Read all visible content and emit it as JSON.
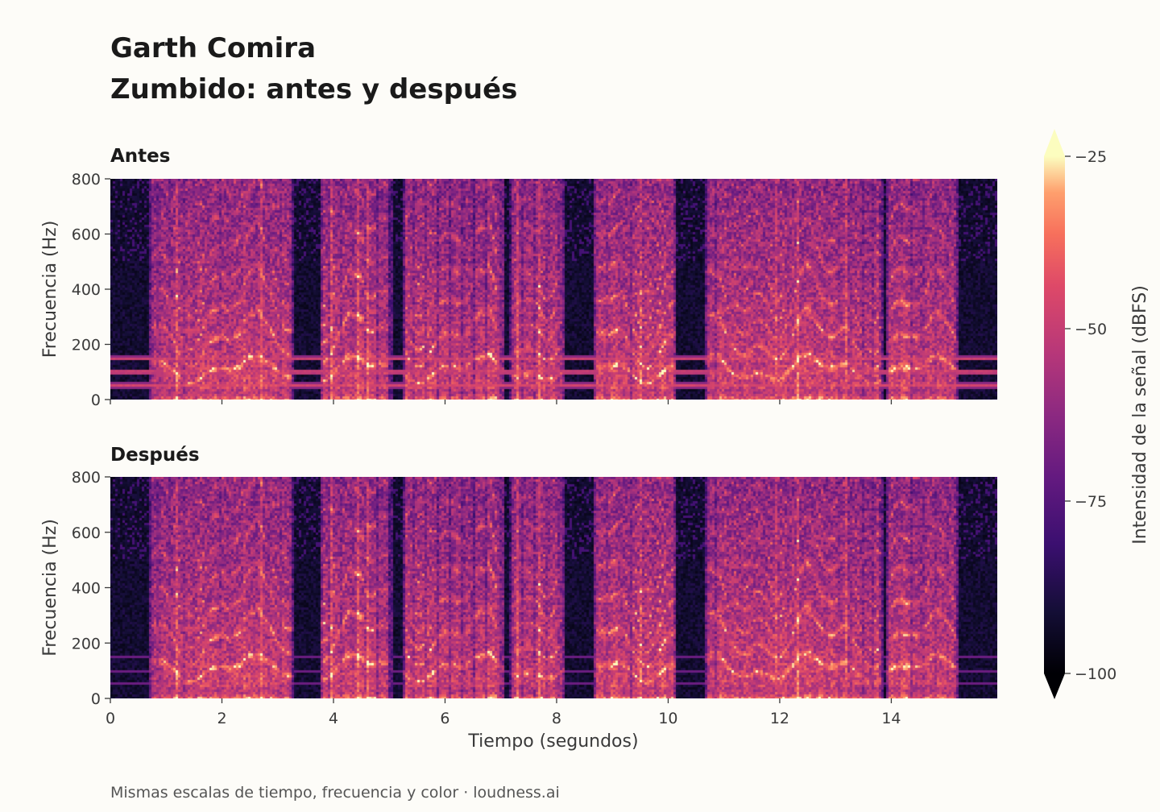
{
  "title_line1": "Garth Comira",
  "title_line2": "Zumbido: antes y después",
  "footer": "Mismas escalas de tiempo, frecuencia y color  ·  loudness.ai",
  "chart_data": {
    "type": "heatmap",
    "colormap": "magma",
    "xlabel": "Tiempo (segundos)",
    "ylabel": "Frecuencia (Hz)",
    "xlim": [
      0,
      15.9
    ],
    "ylim": [
      0,
      800
    ],
    "xticks": [
      0,
      2,
      4,
      6,
      8,
      10,
      12,
      14
    ],
    "yticks": [
      0,
      200,
      400,
      600,
      800
    ],
    "shared_x_axis": true,
    "speech_segments_s": [
      [
        0.7,
        3.3
      ],
      [
        3.75,
        5.05
      ],
      [
        5.25,
        7.05
      ],
      [
        7.15,
        8.15
      ],
      [
        8.65,
        10.15
      ],
      [
        10.65,
        13.85
      ],
      [
        13.9,
        15.2
      ]
    ],
    "panels": [
      {
        "title": "Antes",
        "hum_harmonics_hz": [
          50,
          100,
          150
        ]
      },
      {
        "title": "Después",
        "hum_harmonics_hz": []
      }
    ],
    "colorbar": {
      "label": "Intensidad de la señal (dBFS)",
      "ticks": [
        -25,
        -50,
        -75,
        -100
      ],
      "range": [
        -100,
        -25
      ],
      "extend": "both"
    }
  }
}
